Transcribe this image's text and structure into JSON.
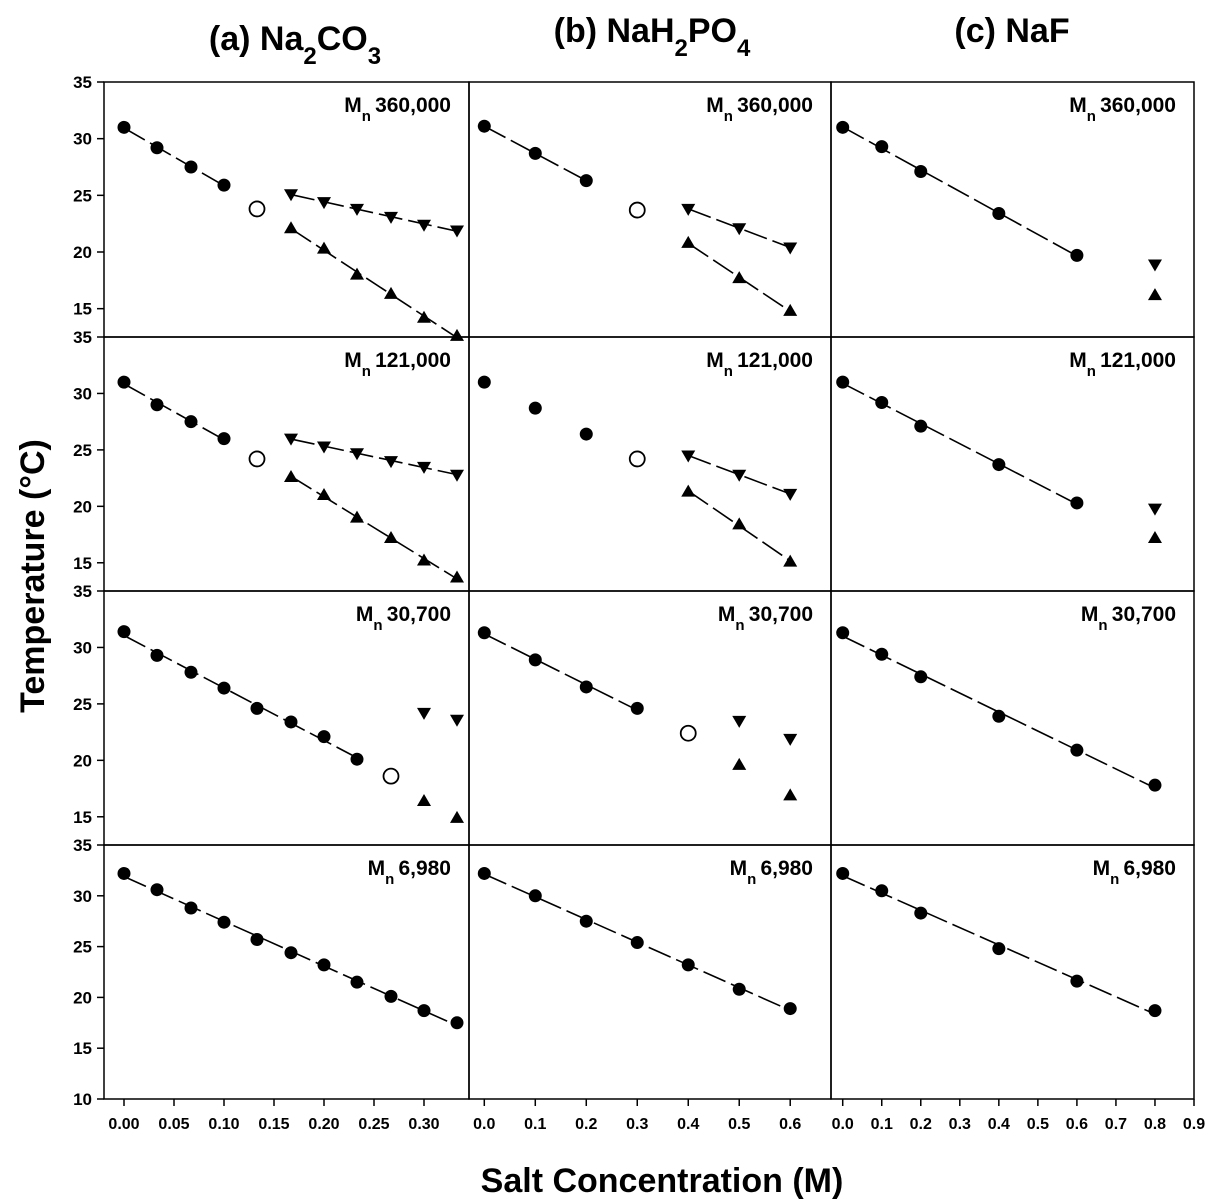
{
  "figure": {
    "column_titles": [
      {
        "prefix": "(a) Na",
        "sub1": "2",
        "mid": "CO",
        "sub2": "3",
        "tail": ""
      },
      {
        "prefix": "(b) NaH",
        "sub1": "2",
        "mid": "PO",
        "sub2": "4",
        "tail": ""
      },
      {
        "prefix": "(c) NaF",
        "sub1": "",
        "mid": "",
        "sub2": "",
        "tail": ""
      }
    ],
    "ylabel": "Temperature (°C)",
    "xlabel": "Salt Concentration (M)",
    "mn_prefix": "M",
    "mn_sub": "n",
    "row_labels": [
      "360,000",
      "121,000",
      "30,700",
      "6,980"
    ]
  },
  "chart_data": [
    {
      "type": "scatter",
      "panel": "(a) Na2CO3",
      "row_label": "Mn 360,000",
      "xlim": [
        -0.02,
        0.345
      ],
      "ylim": [
        12.5,
        35
      ],
      "yticks": [
        15,
        20,
        25,
        30,
        35
      ],
      "ytick_labels": [
        "15",
        "20",
        "25",
        "30",
        "35"
      ],
      "series": [
        {
          "marker": "circle",
          "fit": true,
          "x": [
            0.0,
            0.033,
            0.067,
            0.1
          ],
          "y": [
            31.0,
            29.2,
            27.5,
            25.9
          ]
        },
        {
          "marker": "open-circle",
          "fit": false,
          "x": [
            0.133
          ],
          "y": [
            23.8
          ]
        },
        {
          "marker": "triangle-down",
          "fit": true,
          "x": [
            0.167,
            0.2,
            0.233,
            0.267,
            0.3,
            0.333
          ],
          "y": [
            25.1,
            24.4,
            23.8,
            23.1,
            22.4,
            21.9
          ]
        },
        {
          "marker": "triangle-up",
          "fit": true,
          "x": [
            0.167,
            0.2,
            0.233,
            0.267,
            0.3,
            0.333
          ],
          "y": [
            22.1,
            20.3,
            18.0,
            16.3,
            14.2,
            12.6
          ]
        }
      ]
    },
    {
      "type": "scatter",
      "panel": "(b) NaH2PO4",
      "row_label": "Mn 360,000",
      "xlim": [
        -0.03,
        0.68
      ],
      "ylim": [
        12.5,
        35
      ],
      "yticks": [],
      "ytick_labels": [],
      "series": [
        {
          "marker": "circle",
          "fit": true,
          "x": [
            0.0,
            0.1,
            0.2
          ],
          "y": [
            31.1,
            28.7,
            26.3
          ]
        },
        {
          "marker": "open-circle",
          "fit": false,
          "x": [
            0.3
          ],
          "y": [
            23.7
          ]
        },
        {
          "marker": "triangle-down",
          "fit": true,
          "x": [
            0.4,
            0.5,
            0.6
          ],
          "y": [
            23.8,
            22.1,
            20.4
          ]
        },
        {
          "marker": "triangle-up",
          "fit": true,
          "x": [
            0.4,
            0.5,
            0.6
          ],
          "y": [
            20.8,
            17.7,
            14.8
          ]
        }
      ]
    },
    {
      "type": "scatter",
      "panel": "(c) NaF",
      "row_label": "Mn 360,000",
      "xlim": [
        -0.03,
        0.9
      ],
      "ylim": [
        12.5,
        35
      ],
      "yticks": [],
      "ytick_labels": [],
      "series": [
        {
          "marker": "circle",
          "fit": true,
          "x": [
            0.0,
            0.1,
            0.2,
            0.4,
            0.6
          ],
          "y": [
            31.0,
            29.3,
            27.1,
            23.4,
            19.7
          ]
        },
        {
          "marker": "triangle-down",
          "fit": false,
          "x": [
            0.8
          ],
          "y": [
            18.9
          ]
        },
        {
          "marker": "triangle-up",
          "fit": false,
          "x": [
            0.8
          ],
          "y": [
            16.2
          ]
        }
      ]
    },
    {
      "type": "scatter",
      "panel": "(a) Na2CO3",
      "row_label": "Mn 121,000",
      "xlim": [
        -0.02,
        0.345
      ],
      "ylim": [
        12.5,
        35
      ],
      "yticks": [
        15,
        20,
        25,
        30,
        35
      ],
      "ytick_labels": [
        "15",
        "20",
        "25",
        "30",
        "35"
      ],
      "series": [
        {
          "marker": "circle",
          "fit": true,
          "x": [
            0.0,
            0.033,
            0.067,
            0.1
          ],
          "y": [
            31.0,
            29.0,
            27.5,
            26.0
          ]
        },
        {
          "marker": "open-circle",
          "fit": false,
          "x": [
            0.133
          ],
          "y": [
            24.2
          ]
        },
        {
          "marker": "triangle-down",
          "fit": true,
          "x": [
            0.167,
            0.2,
            0.233,
            0.267,
            0.3,
            0.333
          ],
          "y": [
            26.0,
            25.3,
            24.7,
            24.0,
            23.5,
            22.8
          ]
        },
        {
          "marker": "triangle-up",
          "fit": true,
          "x": [
            0.167,
            0.2,
            0.233,
            0.267,
            0.3,
            0.333
          ],
          "y": [
            22.6,
            21.0,
            19.0,
            17.2,
            15.2,
            13.7
          ]
        }
      ]
    },
    {
      "type": "scatter",
      "panel": "(b) NaH2PO4",
      "row_label": "Mn 121,000",
      "xlim": [
        -0.03,
        0.68
      ],
      "ylim": [
        12.5,
        35
      ],
      "yticks": [],
      "ytick_labels": [],
      "series": [
        {
          "marker": "circle",
          "fit": false,
          "x": [
            0.0,
            0.1,
            0.2
          ],
          "y": [
            31.0,
            28.7,
            26.4
          ]
        },
        {
          "marker": "open-circle",
          "fit": false,
          "x": [
            0.3
          ],
          "y": [
            24.2
          ]
        },
        {
          "marker": "triangle-down",
          "fit": true,
          "x": [
            0.4,
            0.5,
            0.6
          ],
          "y": [
            24.5,
            22.8,
            21.1
          ]
        },
        {
          "marker": "triangle-up",
          "fit": true,
          "x": [
            0.4,
            0.5,
            0.6
          ],
          "y": [
            21.3,
            18.4,
            15.1
          ]
        }
      ]
    },
    {
      "type": "scatter",
      "panel": "(c) NaF",
      "row_label": "Mn 121,000",
      "xlim": [
        -0.03,
        0.9
      ],
      "ylim": [
        12.5,
        35
      ],
      "yticks": [],
      "ytick_labels": [],
      "series": [
        {
          "marker": "circle",
          "fit": true,
          "x": [
            0.0,
            0.1,
            0.2,
            0.4,
            0.6
          ],
          "y": [
            31.0,
            29.2,
            27.1,
            23.7,
            20.3
          ]
        },
        {
          "marker": "triangle-down",
          "fit": false,
          "x": [
            0.8
          ],
          "y": [
            19.8
          ]
        },
        {
          "marker": "triangle-up",
          "fit": false,
          "x": [
            0.8
          ],
          "y": [
            17.2
          ]
        }
      ]
    },
    {
      "type": "scatter",
      "panel": "(a) Na2CO3",
      "row_label": "Mn 30,700",
      "xlim": [
        -0.02,
        0.345
      ],
      "ylim": [
        12.5,
        35
      ],
      "yticks": [
        15,
        20,
        25,
        30,
        35
      ],
      "ytick_labels": [
        "15",
        "20",
        "25",
        "30",
        "35"
      ],
      "series": [
        {
          "marker": "circle",
          "fit": true,
          "x": [
            0.0,
            0.033,
            0.067,
            0.1,
            0.133,
            0.167,
            0.2,
            0.233
          ],
          "y": [
            31.4,
            29.3,
            27.8,
            26.4,
            24.6,
            23.4,
            22.1,
            20.1
          ]
        },
        {
          "marker": "open-circle",
          "fit": false,
          "x": [
            0.267
          ],
          "y": [
            18.6
          ]
        },
        {
          "marker": "triangle-down",
          "fit": false,
          "x": [
            0.3,
            0.333
          ],
          "y": [
            24.2,
            23.6
          ]
        },
        {
          "marker": "triangle-up",
          "fit": false,
          "x": [
            0.3,
            0.333
          ],
          "y": [
            16.4,
            14.9
          ]
        }
      ]
    },
    {
      "type": "scatter",
      "panel": "(b) NaH2PO4",
      "row_label": "Mn 30,700",
      "xlim": [
        -0.03,
        0.68
      ],
      "ylim": [
        12.5,
        35
      ],
      "yticks": [],
      "ytick_labels": [],
      "series": [
        {
          "marker": "circle",
          "fit": true,
          "x": [
            0.0,
            0.1,
            0.2,
            0.3
          ],
          "y": [
            31.3,
            28.9,
            26.5,
            24.6
          ]
        },
        {
          "marker": "open-circle",
          "fit": false,
          "x": [
            0.4
          ],
          "y": [
            22.4
          ]
        },
        {
          "marker": "triangle-down",
          "fit": false,
          "x": [
            0.5,
            0.6
          ],
          "y": [
            23.5,
            21.9
          ]
        },
        {
          "marker": "triangle-up",
          "fit": false,
          "x": [
            0.5,
            0.6
          ],
          "y": [
            19.6,
            16.9
          ]
        }
      ]
    },
    {
      "type": "scatter",
      "panel": "(c) NaF",
      "row_label": "Mn 30,700",
      "xlim": [
        -0.03,
        0.9
      ],
      "ylim": [
        12.5,
        35
      ],
      "yticks": [],
      "ytick_labels": [],
      "series": [
        {
          "marker": "circle",
          "fit": true,
          "x": [
            0.0,
            0.1,
            0.2,
            0.4,
            0.6,
            0.8
          ],
          "y": [
            31.3,
            29.4,
            27.4,
            23.9,
            20.9,
            17.8
          ]
        }
      ]
    },
    {
      "type": "scatter",
      "panel": "(a) Na2CO3",
      "row_label": "Mn 6,980",
      "xlim": [
        -0.02,
        0.345
      ],
      "ylim": [
        10,
        35
      ],
      "yticks": [
        10,
        15,
        20,
        25,
        30,
        35
      ],
      "ytick_labels": [
        "10",
        "15",
        "20",
        "25",
        "30",
        "35"
      ],
      "xticks": [
        0.0,
        0.05,
        0.1,
        0.15,
        0.2,
        0.25,
        0.3
      ],
      "xtick_labels": [
        "0.00",
        "0.05",
        "0.10",
        "0.15",
        "0.20",
        "0.25",
        "0.30"
      ],
      "series": [
        {
          "marker": "circle",
          "fit": true,
          "x": [
            0.0,
            0.033,
            0.067,
            0.1,
            0.133,
            0.167,
            0.2,
            0.233,
            0.267,
            0.3,
            0.333
          ],
          "y": [
            32.2,
            30.6,
            28.8,
            27.4,
            25.7,
            24.4,
            23.2,
            21.5,
            20.1,
            18.7,
            17.5
          ]
        }
      ]
    },
    {
      "type": "scatter",
      "panel": "(b) NaH2PO4",
      "row_label": "Mn 6,980",
      "xlim": [
        -0.03,
        0.68
      ],
      "ylim": [
        10,
        35
      ],
      "yticks": [],
      "ytick_labels": [],
      "xticks": [
        0.0,
        0.1,
        0.2,
        0.3,
        0.4,
        0.5,
        0.6
      ],
      "xtick_labels": [
        "0.0",
        "0.1",
        "0.2",
        "0.3",
        "0.4",
        "0.5",
        "0.6"
      ],
      "series": [
        {
          "marker": "circle",
          "fit": true,
          "x": [
            0.0,
            0.1,
            0.2,
            0.3,
            0.4,
            0.5,
            0.6
          ],
          "y": [
            32.2,
            30.0,
            27.5,
            25.4,
            23.2,
            20.8,
            18.9
          ]
        }
      ]
    },
    {
      "type": "scatter",
      "panel": "(c) NaF",
      "row_label": "Mn 6,980",
      "xlim": [
        -0.03,
        0.9
      ],
      "ylim": [
        10,
        35
      ],
      "yticks": [],
      "ytick_labels": [],
      "xticks": [
        0.0,
        0.1,
        0.2,
        0.3,
        0.4,
        0.5,
        0.6,
        0.7,
        0.8,
        0.9
      ],
      "xtick_labels": [
        "0.0",
        "0.1",
        "0.2",
        "0.3",
        "0.4",
        "0.5",
        "0.6",
        "0.7",
        "0.8",
        "0.9"
      ],
      "series": [
        {
          "marker": "circle",
          "fit": true,
          "x": [
            0.0,
            0.1,
            0.2,
            0.4,
            0.6,
            0.8
          ],
          "y": [
            32.2,
            30.5,
            28.3,
            24.8,
            21.6,
            18.7
          ]
        }
      ]
    }
  ]
}
